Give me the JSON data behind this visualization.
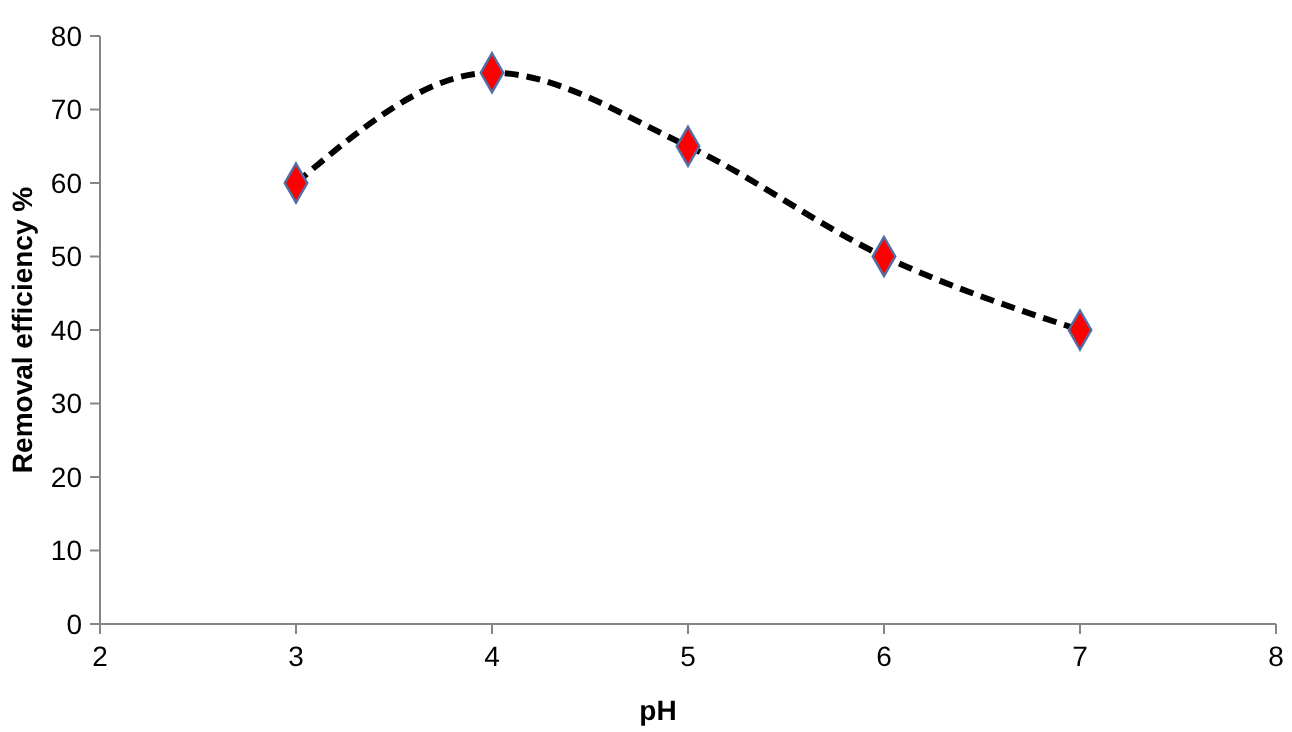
{
  "chart_data": {
    "type": "line",
    "xlabel": "pH",
    "ylabel": "Removal efficiency %",
    "xlim": [
      2,
      8
    ],
    "xticks": [
      2,
      3,
      4,
      5,
      6,
      7,
      8
    ],
    "ylim": [
      0,
      80
    ],
    "yticks": [
      0,
      10,
      20,
      30,
      40,
      50,
      60,
      70,
      80
    ],
    "grid": false,
    "series": [
      {
        "color": "#000000",
        "line_style": "dashed",
        "marker": "none",
        "x": [
          3,
          4,
          5,
          6,
          7
        ],
        "values": [
          60,
          75,
          65,
          50,
          40
        ]
      },
      {
        "type": "scatter",
        "color": "#ff0000",
        "marker": "diamond",
        "x": [
          3,
          4,
          5,
          6,
          7
        ],
        "values": [
          60,
          75,
          65,
          50,
          40
        ]
      }
    ]
  }
}
